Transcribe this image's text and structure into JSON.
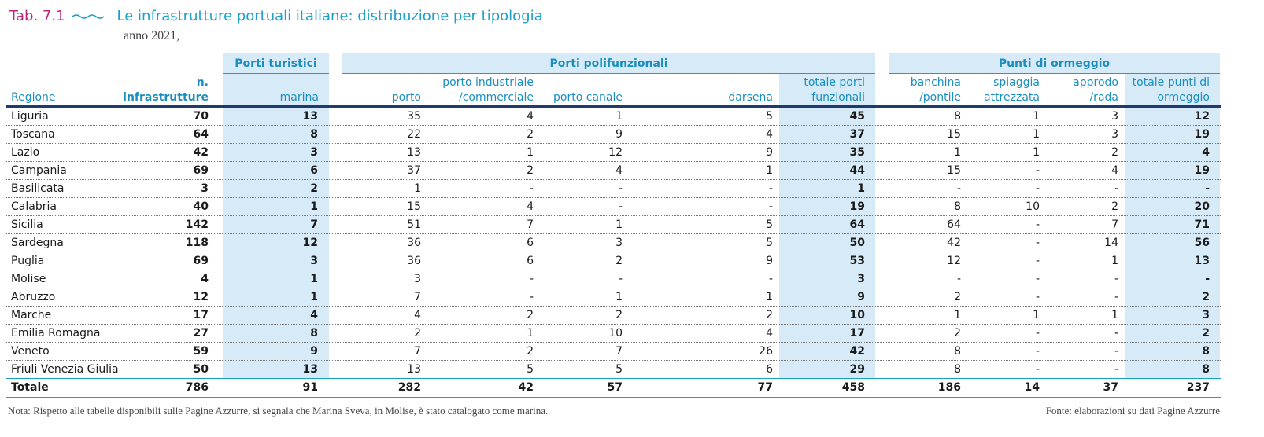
{
  "header": {
    "tab_label": "Tab. 7.1",
    "title": "Le infrastrutture portuali italiane: distribuzione per tipologia",
    "subtitle": "anno 2021,"
  },
  "groups": {
    "porti_turistici": "Porti turistici",
    "porti_polifunzionali": "Porti polifunzionali",
    "punti_ormeggio": "Punti di ormeggio"
  },
  "columns": {
    "regione": "Regione",
    "n_inf_1": "n.",
    "n_inf_2": "infrastrutture",
    "marina": "marina",
    "porto": "porto",
    "porto_ind_1": "porto industriale",
    "porto_ind_2": "/commerciale",
    "porto_canale": "porto canale",
    "darsena": "darsena",
    "tot_porti_1": "totale porti",
    "tot_porti_2": "funzionali",
    "banchina_1": "banchina",
    "banchina_2": "/pontile",
    "spiaggia_1": "spiaggia",
    "spiaggia_2": "attrezzata",
    "approdo_1": "approdo",
    "approdo_2": "/rada",
    "tot_punti_1": "totale punti di",
    "tot_punti_2": "ormeggio"
  },
  "rows": [
    [
      "Liguria",
      "70",
      "13",
      "35",
      "4",
      "1",
      "5",
      "45",
      "8",
      "1",
      "3",
      "12"
    ],
    [
      "Toscana",
      "64",
      "8",
      "22",
      "2",
      "9",
      "4",
      "37",
      "15",
      "1",
      "3",
      "19"
    ],
    [
      "Lazio",
      "42",
      "3",
      "13",
      "1",
      "12",
      "9",
      "35",
      "1",
      "1",
      "2",
      "4"
    ],
    [
      "Campania",
      "69",
      "6",
      "37",
      "2",
      "4",
      "1",
      "44",
      "15",
      "-",
      "4",
      "19"
    ],
    [
      "Basilicata",
      "3",
      "2",
      "1",
      "-",
      "-",
      "-",
      "1",
      "-",
      "-",
      "-",
      "-"
    ],
    [
      "Calabria",
      "40",
      "1",
      "15",
      "4",
      "-",
      "-",
      "19",
      "8",
      "10",
      "2",
      "20"
    ],
    [
      "Sicilia",
      "142",
      "7",
      "51",
      "7",
      "1",
      "5",
      "64",
      "64",
      "-",
      "7",
      "71"
    ],
    [
      "Sardegna",
      "118",
      "12",
      "36",
      "6",
      "3",
      "5",
      "50",
      "42",
      "-",
      "14",
      "56"
    ],
    [
      "Puglia",
      "69",
      "3",
      "36",
      "6",
      "2",
      "9",
      "53",
      "12",
      "-",
      "1",
      "13"
    ],
    [
      "Molise",
      "4",
      "1",
      "3",
      "-",
      "-",
      "-",
      "3",
      "-",
      "-",
      "-",
      "-"
    ],
    [
      "Abruzzo",
      "12",
      "1",
      "7",
      "-",
      "1",
      "1",
      "9",
      "2",
      "-",
      "-",
      "2"
    ],
    [
      "Marche",
      "17",
      "4",
      "4",
      "2",
      "2",
      "2",
      "10",
      "1",
      "1",
      "1",
      "3"
    ],
    [
      "Emilia Romagna",
      "27",
      "8",
      "2",
      "1",
      "10",
      "4",
      "17",
      "2",
      "-",
      "-",
      "2"
    ],
    [
      "Veneto",
      "59",
      "9",
      "7",
      "2",
      "7",
      "26",
      "42",
      "8",
      "-",
      "-",
      "8"
    ],
    [
      "Friuli Venezia Giulia",
      "50",
      "13",
      "13",
      "5",
      "5",
      "6",
      "29",
      "8",
      "-",
      "-",
      "8"
    ]
  ],
  "total": [
    "Totale",
    "786",
    "91",
    "282",
    "42",
    "57",
    "77",
    "458",
    "186",
    "14",
    "37",
    "237"
  ],
  "footer": {
    "note": "Nota: Rispetto alle tabelle disponibili sulle Pagine Azzurre, si segnala che Marina Sveva, in Molise, è stato catalogato come marina.",
    "source": "Fonte: elaborazioni su dati Pagine Azzurre"
  },
  "colors": {
    "accent": "#1aa1c9",
    "tab": "#c0257d",
    "band": "#d6eaf8",
    "rule": "#1f3a6e"
  }
}
